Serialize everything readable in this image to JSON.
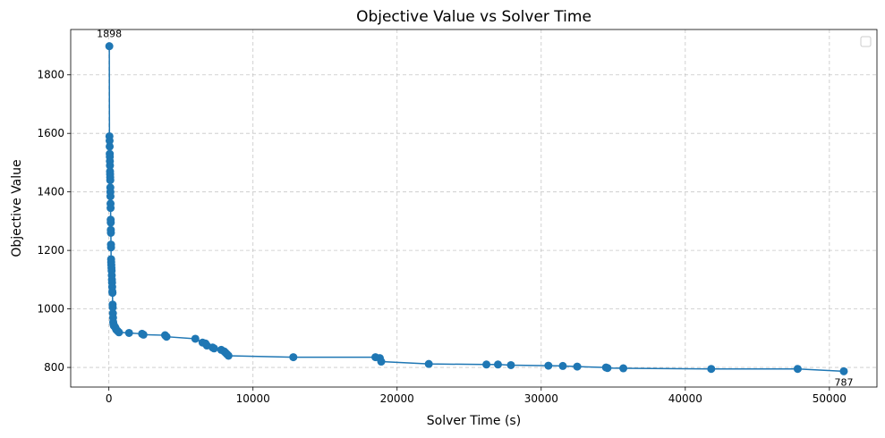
{
  "chart_data": {
    "type": "line",
    "title": "Objective Value vs Solver Time",
    "xlabel": "Solver Time (s)",
    "ylabel": "Objective Value",
    "xlim": [
      -2650,
      53300
    ],
    "ylim": [
      733,
      1955
    ],
    "xticks": [
      0,
      10000,
      20000,
      30000,
      40000,
      50000
    ],
    "xtick_labels": [
      "0",
      "10000",
      "20000",
      "30000",
      "40000",
      "50000"
    ],
    "yticks": [
      800,
      1000,
      1200,
      1400,
      1600,
      1800
    ],
    "ytick_labels": [
      "800",
      "1000",
      "1200",
      "1400",
      "1600",
      "1800"
    ],
    "grid": true,
    "legend": "top-right",
    "color": "#1f77b4",
    "series": [
      {
        "x": [
          30,
          40,
          50,
          55,
          60,
          65,
          70,
          75,
          80,
          85,
          90,
          95,
          100,
          105,
          110,
          115,
          120,
          125,
          130,
          135,
          140,
          145,
          150,
          155,
          160,
          170,
          180,
          190,
          200,
          210,
          220,
          230,
          240,
          250,
          260,
          270,
          280,
          290,
          300,
          320,
          350,
          400,
          450,
          500,
          600,
          700,
          1400,
          2300,
          2400,
          3900,
          4000,
          6000,
          6500,
          6700,
          6800,
          7200,
          7300,
          7800,
          8000,
          8100,
          8200,
          8300,
          12800,
          18500,
          18800,
          18900,
          22200,
          26200,
          27000,
          27900,
          30500,
          31500,
          32500,
          34500,
          34600,
          35700,
          41800,
          47800,
          51000
        ],
        "y": [
          1898,
          1590,
          1575,
          1555,
          1530,
          1520,
          1505,
          1490,
          1470,
          1460,
          1450,
          1440,
          1415,
          1400,
          1385,
          1360,
          1345,
          1305,
          1295,
          1270,
          1260,
          1220,
          1210,
          1170,
          1160,
          1150,
          1140,
          1130,
          1115,
          1100,
          1090,
          1075,
          1060,
          1055,
          1015,
          1005,
          985,
          970,
          955,
          948,
          942,
          940,
          936,
          930,
          925,
          920,
          918,
          915,
          912,
          910,
          905,
          898,
          885,
          882,
          875,
          868,
          865,
          860,
          855,
          850,
          845,
          840,
          835,
          835,
          832,
          820,
          812,
          810,
          810,
          808,
          806,
          805,
          803,
          800,
          798,
          797,
          795,
          795,
          787
        ]
      }
    ],
    "annotations": [
      {
        "label": "1898",
        "x": 30,
        "y": 1898,
        "position": "above"
      },
      {
        "label": "787",
        "x": 51000,
        "y": 787,
        "position": "below"
      }
    ]
  }
}
